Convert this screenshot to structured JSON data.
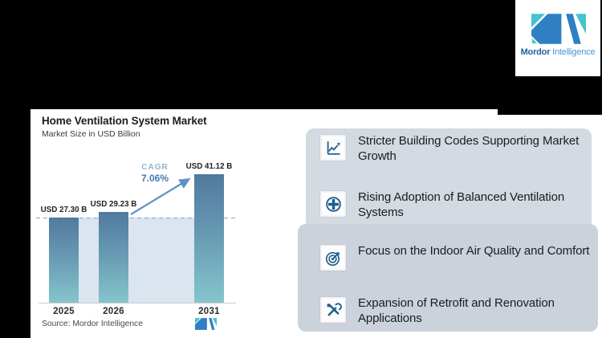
{
  "brand": {
    "name_bold": "Mordor",
    "name_light": "Intelligence",
    "colors": {
      "teal": "#44c2cd",
      "blue": "#2e80c2"
    }
  },
  "chart": {
    "title": "Home Ventilation System Market",
    "subtitle": "Market Size in USD Billion",
    "cagr_label": "CAGR",
    "cagr_value": "7.06%",
    "source": "Source: Mordor Intelligence"
  },
  "chart_data": {
    "type": "bar",
    "title": "Home Ventilation System Market",
    "ylabel": "Market Size in USD Billion",
    "xlabel": "",
    "categories": [
      "2025",
      "2026",
      "2031"
    ],
    "values": [
      27.3,
      29.23,
      41.12
    ],
    "value_labels": [
      "USD 27.30 B",
      "USD 29.23 B",
      "USD 41.12 B"
    ],
    "ylim": [
      0,
      45
    ],
    "grid": false,
    "legend": "none",
    "annotations": {
      "cagr": "7.06%",
      "dashed_reference_value": 27.3
    },
    "colors": {
      "bar_top": "#51799f",
      "bar_bottom": "#85c5cc",
      "area_fill": "#dbe5ef",
      "dashed_line": "#9cbcd4",
      "arrow": "#5f92c4"
    }
  },
  "features": {
    "items": [
      {
        "icon": "line-chart-icon",
        "text": "Stricter Building Codes Supporting Market Growth"
      },
      {
        "icon": "plus-circle-icon",
        "text": "Rising Adoption of Balanced Ventilation Systems"
      },
      {
        "icon": "target-icon",
        "text": "Focus on the Indoor Air Quality and Comfort"
      },
      {
        "icon": "tools-icon",
        "text": "Expansion of Retrofit and Renovation Applications"
      }
    ]
  }
}
